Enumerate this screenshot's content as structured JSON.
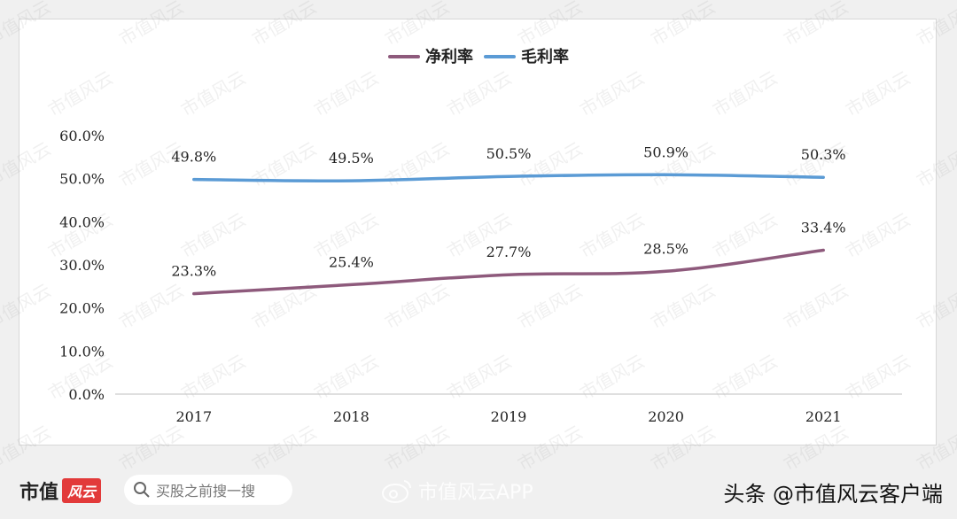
{
  "chart_data": {
    "type": "line",
    "categories": [
      "2017",
      "2018",
      "2019",
      "2020",
      "2021"
    ],
    "series": [
      {
        "name": "净利率",
        "values": [
          23.3,
          25.4,
          27.7,
          28.5,
          33.4
        ],
        "labels": [
          "23.3%",
          "25.4%",
          "27.7%",
          "28.5%",
          "33.4%"
        ],
        "color": "#8e5a7c"
      },
      {
        "name": "毛利率",
        "values": [
          49.8,
          49.5,
          50.5,
          50.9,
          50.3
        ],
        "labels": [
          "49.8%",
          "49.5%",
          "50.5%",
          "50.9%",
          "50.3%"
        ],
        "color": "#5b9bd5"
      }
    ],
    "yticks": [
      "0.0%",
      "10.0%",
      "20.0%",
      "30.0%",
      "40.0%",
      "50.0%",
      "60.0%"
    ],
    "ylim": [
      0,
      60
    ],
    "grid": false,
    "legend_position": "top"
  },
  "watermark": "市值风云",
  "footer": {
    "brand": "市值",
    "brand_logo": "风云",
    "search_placeholder": "买股之前搜一搜",
    "weibo": "市值风云APP",
    "credit": "头条 @市值风云客户端"
  }
}
